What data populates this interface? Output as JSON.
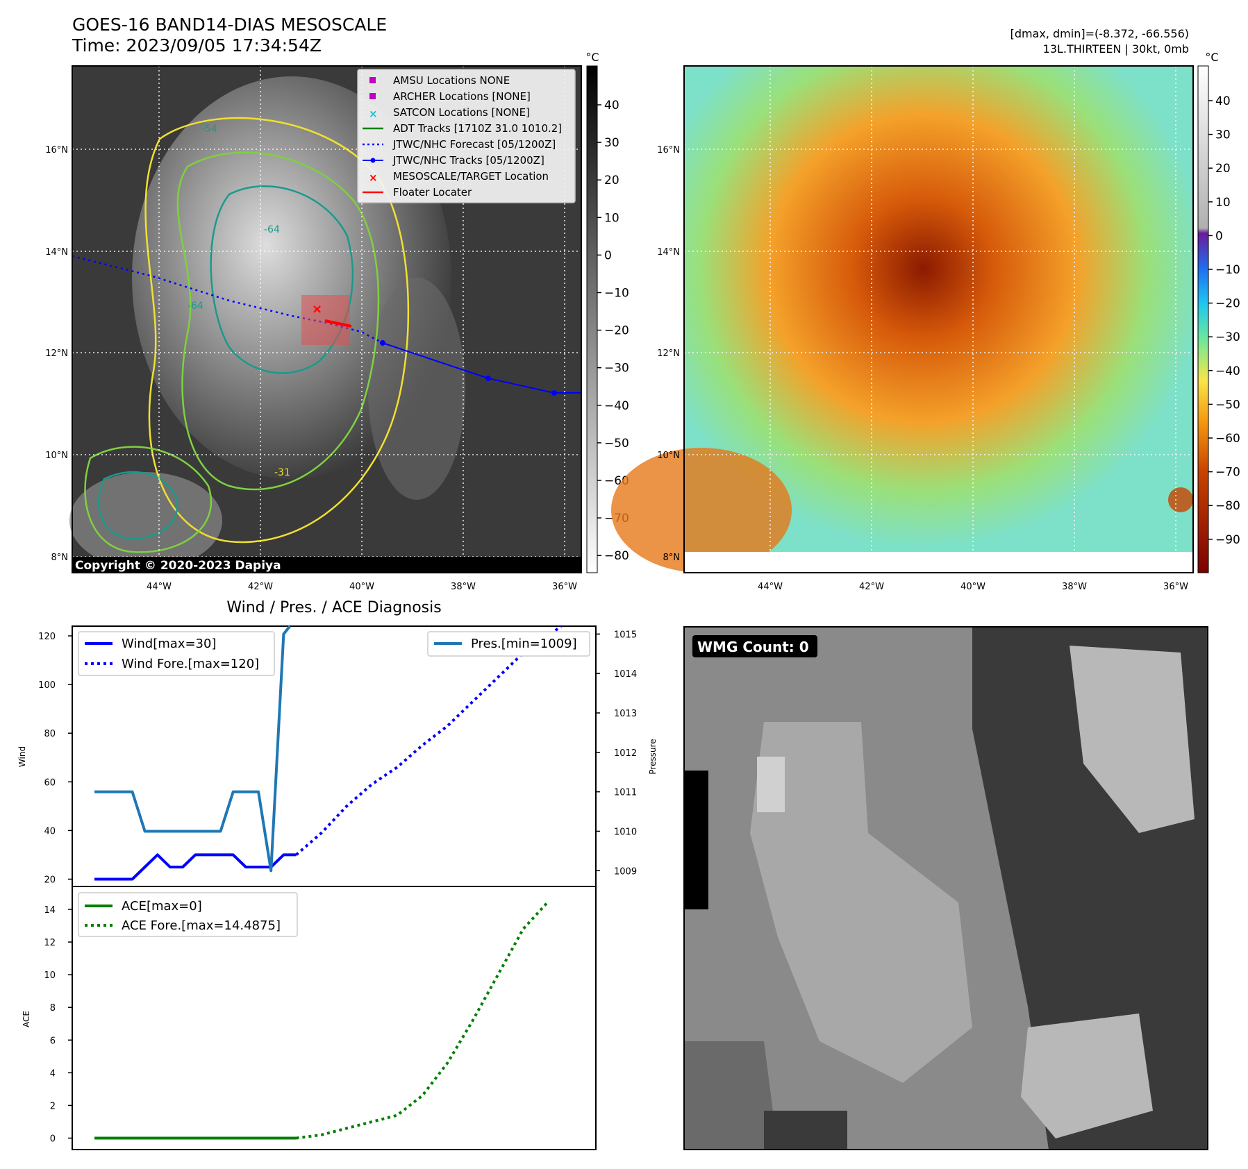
{
  "header": {
    "title": "GOES-16 BAND14-DIAS MESOSCALE",
    "time": "Time: 2023/09/05 17:34:54Z",
    "stats": "[dmax, dmin]=(-8.372, -66.556)",
    "storm": "13L.THIRTEEN | 30kt, 0mb"
  },
  "map": {
    "lat_labels": [
      "16°N",
      "14°N",
      "12°N",
      "10°N",
      "8°N"
    ],
    "lon_labels": [
      "44°W",
      "42°W",
      "40°W",
      "38°W",
      "36°W"
    ],
    "copyright": "Copyright © 2020-2023 Dapiya",
    "colorbar_unit": "°C",
    "gray_colorbar_ticks": [
      "40",
      "30",
      "20",
      "10",
      "0",
      "−10",
      "−20",
      "−30",
      "−40",
      "−50",
      "−60",
      "−70",
      "−80"
    ],
    "color_colorbar_ticks": [
      "40",
      "30",
      "20",
      "10",
      "0",
      "−10",
      "−20",
      "−30",
      "−40",
      "−50",
      "−60",
      "−70",
      "−80",
      "−90"
    ],
    "contour_labels": [
      "-54",
      "-64",
      "-64",
      "-31"
    ],
    "legend": [
      {
        "label": "AMSU Locations NONE",
        "symbol": "square",
        "color": "#bf00bf"
      },
      {
        "label": "ARCHER Locations [NONE]",
        "symbol": "square",
        "color": "#bf00bf"
      },
      {
        "label": "SATCON Locations [NONE]",
        "symbol": "x",
        "color": "#17becf"
      },
      {
        "label": "ADT Tracks [1710Z 31.0 1010.2]",
        "symbol": "line",
        "color": "#008000"
      },
      {
        "label": "JTWC/NHC Forecast [05/1200Z]",
        "symbol": "dotted",
        "color": "#0000ff"
      },
      {
        "label": "JTWC/NHC Tracks [05/1200Z]",
        "symbol": "line-dot",
        "color": "#0000ff"
      },
      {
        "label": "MESOSCALE/TARGET Location",
        "symbol": "x",
        "color": "#ff0000"
      },
      {
        "label": "Floater Locater",
        "symbol": "line",
        "color": "#ff0000"
      }
    ]
  },
  "wmg": {
    "label": "WMG Count: 0"
  },
  "chart_data": [
    {
      "type": "line",
      "title": "Wind / Pres. / ACE Diagnosis",
      "ylabel": "Wind",
      "y2label": "Pressure",
      "ylim": [
        17,
        124
      ],
      "y2lim": [
        1008.6,
        1015.2
      ],
      "xlim": [
        0,
        38
      ],
      "yticks": [
        "20",
        "40",
        "60",
        "80",
        "100",
        "120"
      ],
      "y2ticks": [
        "1009",
        "1010",
        "1011",
        "1012",
        "1013",
        "1014",
        "1015"
      ],
      "series": [
        {
          "name": "Wind[max=30]",
          "color": "#0000ff",
          "style": "solid",
          "x": [
            0,
            1,
            2,
            3,
            4,
            5,
            6,
            7,
            8,
            9,
            10,
            11,
            12,
            13,
            14,
            15,
            16
          ],
          "y": [
            20,
            20,
            20,
            20,
            25,
            30,
            25,
            25,
            30,
            30,
            30,
            30,
            25,
            25,
            25,
            30,
            30
          ]
        },
        {
          "name": "Wind Fore.[max=120]",
          "color": "#0000ff",
          "style": "dotted",
          "x": [
            16,
            18,
            20,
            22,
            24,
            26,
            28,
            30,
            32,
            34,
            36,
            37
          ],
          "y": [
            30,
            39,
            50,
            59,
            66,
            75,
            83,
            93,
            103,
            113,
            120,
            124
          ]
        },
        {
          "name": "Pres.[min=1009]",
          "color": "#1f77b4",
          "style": "solid",
          "axis": "right",
          "x": [
            0,
            1,
            2,
            3,
            4,
            5,
            6,
            7,
            8,
            9,
            10,
            11,
            12,
            13,
            14,
            15,
            15.5
          ],
          "y": [
            1011,
            1011,
            1011,
            1011,
            1010,
            1010,
            1010,
            1010,
            1010,
            1010,
            1010,
            1011,
            1011,
            1011,
            1009,
            1015,
            1015.2
          ]
        }
      ]
    },
    {
      "type": "line",
      "ylabel": "ACE",
      "ylim": [
        -0.7,
        15.4
      ],
      "xlim": [
        0,
        38
      ],
      "yticks": [
        "0",
        "2",
        "4",
        "6",
        "8",
        "10",
        "12",
        "14"
      ],
      "series": [
        {
          "name": "ACE[max=0]",
          "color": "#008000",
          "style": "solid",
          "x": [
            0,
            16
          ],
          "y": [
            0,
            0
          ]
        },
        {
          "name": "ACE Fore.[max=14.4875]",
          "color": "#008000",
          "style": "dotted",
          "x": [
            16,
            18,
            20,
            22,
            24,
            26,
            28,
            30,
            32,
            34,
            36
          ],
          "y": [
            0,
            0.2,
            0.6,
            1.0,
            1.4,
            2.6,
            4.6,
            7.2,
            10.0,
            12.8,
            14.4875
          ]
        }
      ]
    }
  ]
}
